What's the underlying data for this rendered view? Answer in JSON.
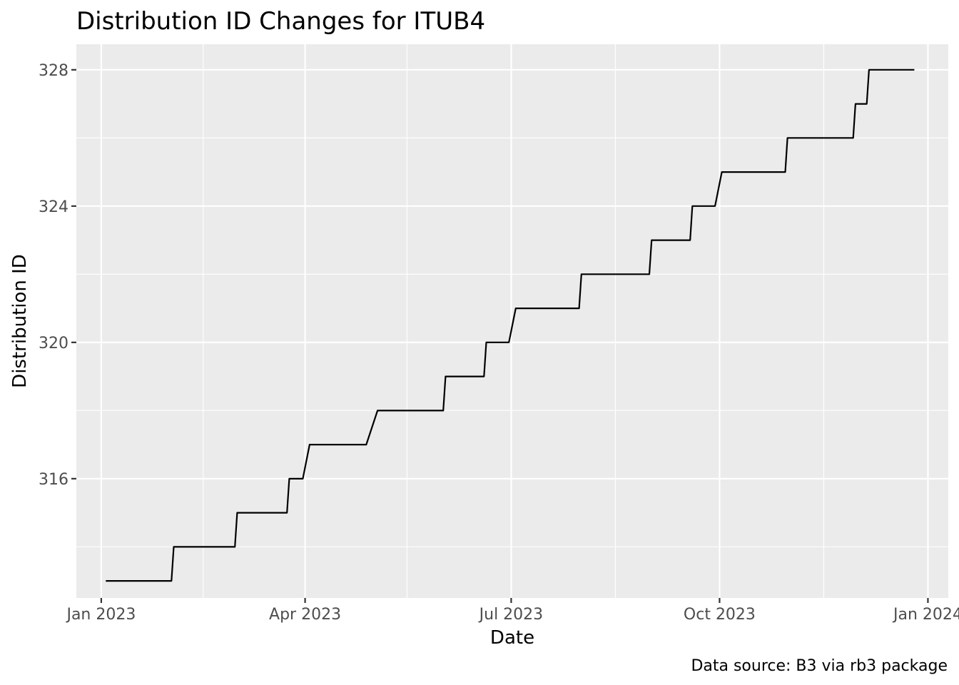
{
  "chart_data": {
    "type": "line",
    "title": "Distribution ID Changes for ITUB4",
    "xlabel": "Date",
    "ylabel": "Distribution ID",
    "caption": "Data source: B3 via rb3 package",
    "x_ticks": [
      "2023-01-01",
      "2023-04-01",
      "2023-07-01",
      "2023-10-01",
      "2024-01-01"
    ],
    "x_tick_labels": [
      "Jan 2023",
      "Apr 2023",
      "Jul 2023",
      "Oct 2023",
      "Jan 2024"
    ],
    "x_minor_ticks": [
      "2023-02-15",
      "2023-05-16",
      "2023-08-16",
      "2023-11-16"
    ],
    "y_ticks": [
      316,
      320,
      324,
      328
    ],
    "y_minor_ticks": [
      314,
      318,
      322,
      326
    ],
    "xlim": [
      "2022-12-21",
      "2024-01-10"
    ],
    "ylim": [
      312.5,
      328.75
    ],
    "grid": true,
    "series": [
      {
        "color": "#000000",
        "points": [
          [
            "2023-01-03",
            313
          ],
          [
            "2023-02-01",
            313
          ],
          [
            "2023-02-02",
            314
          ],
          [
            "2023-03-01",
            314
          ],
          [
            "2023-03-02",
            315
          ],
          [
            "2023-03-24",
            315
          ],
          [
            "2023-03-25",
            316
          ],
          [
            "2023-03-31",
            316
          ],
          [
            "2023-04-03",
            317
          ],
          [
            "2023-04-28",
            317
          ],
          [
            "2023-05-03",
            318
          ],
          [
            "2023-06-01",
            318
          ],
          [
            "2023-06-02",
            319
          ],
          [
            "2023-06-19",
            319
          ],
          [
            "2023-06-20",
            320
          ],
          [
            "2023-06-30",
            320
          ],
          [
            "2023-07-03",
            321
          ],
          [
            "2023-07-31",
            321
          ],
          [
            "2023-08-01",
            322
          ],
          [
            "2023-08-31",
            322
          ],
          [
            "2023-09-01",
            323
          ],
          [
            "2023-09-18",
            323
          ],
          [
            "2023-09-19",
            324
          ],
          [
            "2023-09-29",
            324
          ],
          [
            "2023-10-02",
            325
          ],
          [
            "2023-10-30",
            325
          ],
          [
            "2023-10-31",
            326
          ],
          [
            "2023-11-29",
            326
          ],
          [
            "2023-11-30",
            327
          ],
          [
            "2023-12-05",
            327
          ],
          [
            "2023-12-06",
            328
          ],
          [
            "2023-12-26",
            328
          ]
        ]
      }
    ]
  }
}
